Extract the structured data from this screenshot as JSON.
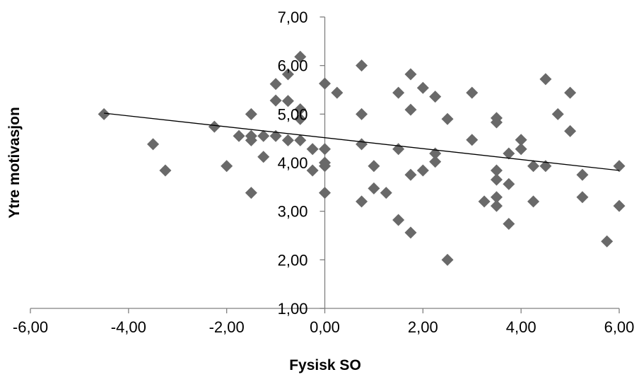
{
  "chart_data": {
    "type": "scatter",
    "title": "",
    "xlabel": "Fysisk SO",
    "ylabel": "Ytre motivasjon",
    "xlim": [
      -6,
      6
    ],
    "ylim": [
      1,
      7
    ],
    "x_ticks": [
      -6,
      -4,
      -2,
      0,
      2,
      4,
      6
    ],
    "y_ticks": [
      1,
      2,
      3,
      4,
      5,
      6,
      7
    ],
    "x_tick_labels": [
      "-6,00",
      "-4,00",
      "-2,00",
      "0,00",
      "2,00",
      "4,00",
      "6,00"
    ],
    "y_tick_labels": [
      "1,00",
      "2,00",
      "3,00",
      "4,00",
      "5,00",
      "6,00",
      "7,00"
    ],
    "grid": false,
    "marker": "diamond",
    "marker_color": "#696969",
    "trendline": {
      "x": [
        -4.5,
        6.0
      ],
      "y": [
        5.02,
        3.84
      ],
      "color": "#000000"
    },
    "points": [
      [
        -4.5,
        5.0
      ],
      [
        -3.5,
        4.38
      ],
      [
        -3.25,
        3.84
      ],
      [
        -2.25,
        4.74
      ],
      [
        -2.0,
        3.93
      ],
      [
        -1.75,
        4.55
      ],
      [
        -1.5,
        5.0
      ],
      [
        -1.5,
        4.55
      ],
      [
        -1.5,
        4.46
      ],
      [
        -1.5,
        3.38
      ],
      [
        -1.25,
        4.55
      ],
      [
        -1.25,
        4.12
      ],
      [
        -1.0,
        5.62
      ],
      [
        -1.0,
        5.28
      ],
      [
        -1.0,
        4.55
      ],
      [
        -0.75,
        5.82
      ],
      [
        -0.75,
        5.27
      ],
      [
        -0.75,
        4.46
      ],
      [
        -0.5,
        6.18
      ],
      [
        -0.5,
        5.1
      ],
      [
        -0.5,
        4.9
      ],
      [
        -0.5,
        4.46
      ],
      [
        -0.25,
        4.28
      ],
      [
        -0.25,
        3.84
      ],
      [
        0.0,
        5.63
      ],
      [
        0.0,
        4.28
      ],
      [
        0.0,
        4.0
      ],
      [
        0.0,
        3.93
      ],
      [
        0.0,
        3.38
      ],
      [
        0.25,
        5.44
      ],
      [
        0.75,
        6.0
      ],
      [
        0.75,
        5.0
      ],
      [
        0.75,
        4.38
      ],
      [
        0.75,
        3.2
      ],
      [
        1.0,
        3.93
      ],
      [
        1.0,
        3.47
      ],
      [
        1.25,
        3.38
      ],
      [
        1.5,
        5.44
      ],
      [
        1.5,
        4.28
      ],
      [
        1.5,
        2.82
      ],
      [
        1.75,
        5.82
      ],
      [
        1.75,
        5.09
      ],
      [
        1.75,
        3.75
      ],
      [
        1.75,
        2.56
      ],
      [
        2.0,
        5.54
      ],
      [
        2.0,
        3.84
      ],
      [
        2.25,
        5.36
      ],
      [
        2.25,
        4.19
      ],
      [
        2.25,
        4.02
      ],
      [
        2.5,
        4.9
      ],
      [
        2.5,
        2.0
      ],
      [
        3.0,
        5.44
      ],
      [
        3.0,
        4.47
      ],
      [
        3.25,
        3.2
      ],
      [
        3.5,
        4.92
      ],
      [
        3.5,
        4.83
      ],
      [
        3.5,
        3.84
      ],
      [
        3.5,
        3.65
      ],
      [
        3.5,
        3.29
      ],
      [
        3.5,
        3.11
      ],
      [
        3.75,
        4.19
      ],
      [
        3.75,
        3.56
      ],
      [
        3.75,
        2.74
      ],
      [
        4.0,
        4.47
      ],
      [
        4.0,
        4.28
      ],
      [
        4.25,
        3.93
      ],
      [
        4.25,
        3.2
      ],
      [
        4.5,
        5.72
      ],
      [
        4.5,
        3.93
      ],
      [
        4.75,
        5.0
      ],
      [
        5.0,
        5.44
      ],
      [
        5.0,
        4.65
      ],
      [
        5.25,
        3.75
      ],
      [
        5.25,
        3.29
      ],
      [
        5.75,
        2.38
      ],
      [
        6.0,
        3.93
      ],
      [
        6.0,
        3.11
      ]
    ]
  }
}
